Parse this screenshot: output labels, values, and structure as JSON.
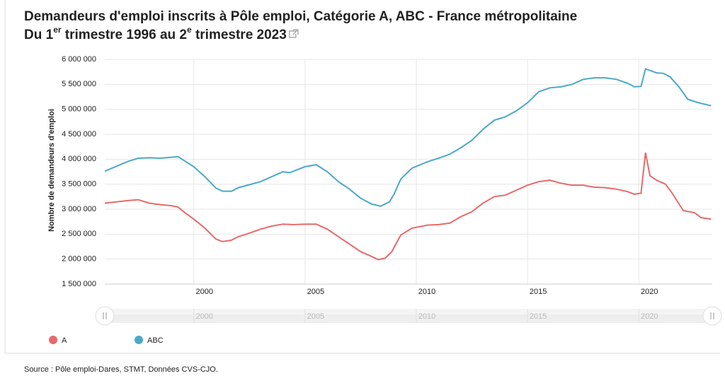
{
  "chart_data": {
    "type": "line",
    "title": "Demandeurs d'emploi inscrits à Pôle emploi, Catégorie A, ABC - France métropolitaine",
    "subtitle": [
      "Du 1",
      "er",
      " trimestre 1996 au 2",
      "e",
      " trimestre 2023"
    ],
    "y_label": "Nombre de demandeurs d'emploi",
    "source": "Source : Pôle emploi-Dares, STMT, Données CVS-CJO.",
    "xlim": [
      1996,
      2023.3
    ],
    "xticks": [
      2000,
      2005,
      2010,
      2015,
      2020
    ],
    "ylim": [
      1500000,
      6000000
    ],
    "yticks": [
      {
        "value": 1500000,
        "label": "1 500 000"
      },
      {
        "value": 2000000,
        "label": "2 000 000"
      },
      {
        "value": 2500000,
        "label": "2 500 000"
      },
      {
        "value": 3000000,
        "label": "3 000 000"
      },
      {
        "value": 3500000,
        "label": "3 500 000"
      },
      {
        "value": 4000000,
        "label": "4 000 000"
      },
      {
        "value": 4500000,
        "label": "4 500 000"
      },
      {
        "value": 5000000,
        "label": "5 000 000"
      },
      {
        "value": 5500000,
        "label": "5 500 000"
      },
      {
        "value": 6000000,
        "label": "6 000 000"
      }
    ],
    "grid": true,
    "legend": "bottom-left",
    "series": [
      {
        "name": "A",
        "color": "#e8696b",
        "x": [
          1996,
          1997,
          1997.5,
          1998,
          1998.5,
          1999,
          1999.3,
          1999.6,
          2000,
          2000.5,
          2001,
          2001.3,
          2001.7,
          2002,
          2002.5,
          2003,
          2003.5,
          2004,
          2004.5,
          2005,
          2005.5,
          2006,
          2006.5,
          2007,
          2007.5,
          2008,
          2008.3,
          2008.6,
          2008.9,
          2009.3,
          2009.8,
          2010.5,
          2011,
          2011.5,
          2012,
          2012.5,
          2013,
          2013.5,
          2014,
          2014.5,
          2015,
          2015.5,
          2016,
          2016.5,
          2017,
          2017.5,
          2018,
          2018.5,
          2019,
          2019.5,
          2019.8,
          2020.1,
          2020.3,
          2020.5,
          2020.8,
          2021.2,
          2021.5,
          2022,
          2022.5,
          2022.8,
          2023.25
        ],
        "values": [
          3120000,
          3170000,
          3190000,
          3120000,
          3090000,
          3070000,
          3040000,
          2930000,
          2800000,
          2620000,
          2400000,
          2350000,
          2380000,
          2450000,
          2520000,
          2600000,
          2660000,
          2700000,
          2690000,
          2700000,
          2700000,
          2600000,
          2450000,
          2300000,
          2150000,
          2050000,
          1990000,
          2020000,
          2150000,
          2480000,
          2620000,
          2680000,
          2690000,
          2720000,
          2850000,
          2950000,
          3120000,
          3250000,
          3280000,
          3380000,
          3480000,
          3550000,
          3580000,
          3520000,
          3480000,
          3480000,
          3440000,
          3430000,
          3400000,
          3350000,
          3300000,
          3320000,
          4130000,
          3670000,
          3580000,
          3500000,
          3320000,
          2970000,
          2930000,
          2830000,
          2800000
        ]
      },
      {
        "name": "ABC",
        "color": "#4aa9c9",
        "x": [
          1996,
          1997,
          1997.5,
          1998,
          1998.5,
          1999,
          1999.3,
          2000,
          2000.5,
          2001,
          2001.3,
          2001.7,
          2002,
          2002.5,
          2003,
          2003.5,
          2004,
          2004.3,
          2005,
          2005.5,
          2006,
          2006.5,
          2007,
          2007.5,
          2008,
          2008.4,
          2008.8,
          2009,
          2009.3,
          2009.8,
          2010.5,
          2011,
          2011.5,
          2012,
          2012.5,
          2013,
          2013.5,
          2014,
          2014.5,
          2015,
          2015.5,
          2016,
          2016.5,
          2017,
          2017.5,
          2018,
          2018.5,
          2019,
          2019.5,
          2019.8,
          2020.1,
          2020.3,
          2020.8,
          2021.1,
          2021.4,
          2021.8,
          2022.2,
          2022.7,
          2023.25
        ],
        "values": [
          3760000,
          3950000,
          4020000,
          4030000,
          4020000,
          4040000,
          4050000,
          3850000,
          3650000,
          3420000,
          3360000,
          3360000,
          3430000,
          3490000,
          3550000,
          3650000,
          3750000,
          3730000,
          3850000,
          3890000,
          3750000,
          3550000,
          3400000,
          3220000,
          3100000,
          3060000,
          3150000,
          3300000,
          3600000,
          3820000,
          3950000,
          4020000,
          4100000,
          4230000,
          4380000,
          4600000,
          4780000,
          4850000,
          4970000,
          5130000,
          5350000,
          5430000,
          5450000,
          5500000,
          5600000,
          5630000,
          5630000,
          5600000,
          5520000,
          5450000,
          5460000,
          5810000,
          5730000,
          5720000,
          5650000,
          5450000,
          5200000,
          5130000,
          5070000
        ]
      }
    ]
  }
}
